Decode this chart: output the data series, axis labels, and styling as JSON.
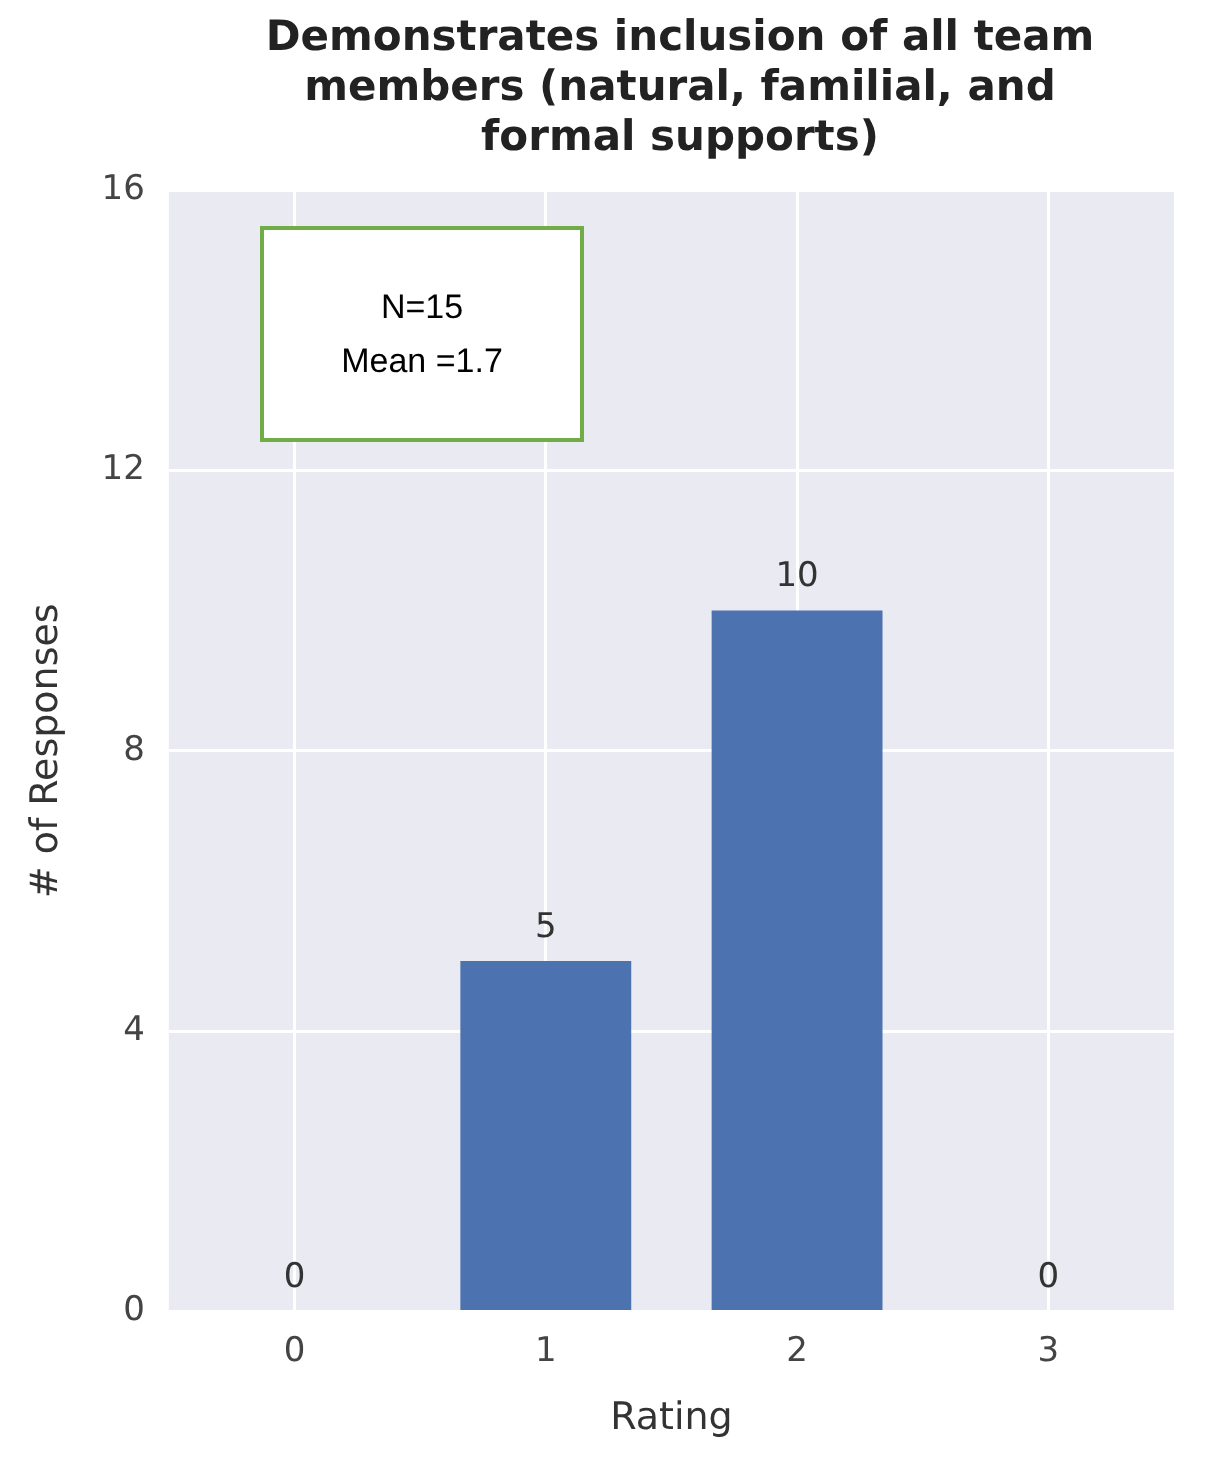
{
  "chart_data": {
    "type": "bar",
    "title": "Demonstrates inclusion of all team members (natural, familial, and formal supports)",
    "xlabel": "Rating",
    "ylabel": "# of Responses",
    "categories": [
      "0",
      "1",
      "2",
      "3"
    ],
    "values": [
      0,
      5,
      10,
      0
    ],
    "color": "#4c72b0",
    "ylim": [
      0,
      16
    ],
    "yticks": [
      0,
      4,
      8,
      12,
      16
    ],
    "grid": true,
    "data_labels": true,
    "legend": false,
    "annotations": [
      "N=15",
      "Mean =1.7"
    ]
  }
}
